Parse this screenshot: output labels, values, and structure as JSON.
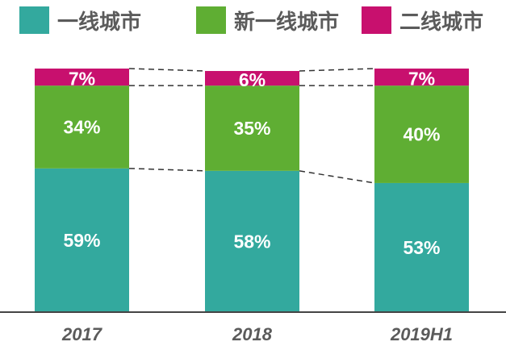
{
  "chart_data": {
    "type": "bar",
    "stacked": true,
    "percent": true,
    "categories": [
      "2017",
      "2018",
      "2019H1"
    ],
    "series": [
      {
        "name": "一线城市",
        "values": [
          59,
          58,
          53
        ],
        "labels": [
          "59%",
          "58%",
          "53%"
        ],
        "color": "#33A99E"
      },
      {
        "name": "新一线城市",
        "values": [
          34,
          35,
          40
        ],
        "labels": [
          "34%",
          "35%",
          "40%"
        ],
        "color": "#5FAE33"
      },
      {
        "name": "二线城市",
        "values": [
          7,
          6,
          7
        ],
        "labels": [
          "7%",
          "6%",
          "7%"
        ],
        "color": "#C8106E"
      }
    ],
    "ylim": [
      0,
      100
    ],
    "grid": false,
    "legend_position": "top",
    "connector_lines": "dashed"
  }
}
